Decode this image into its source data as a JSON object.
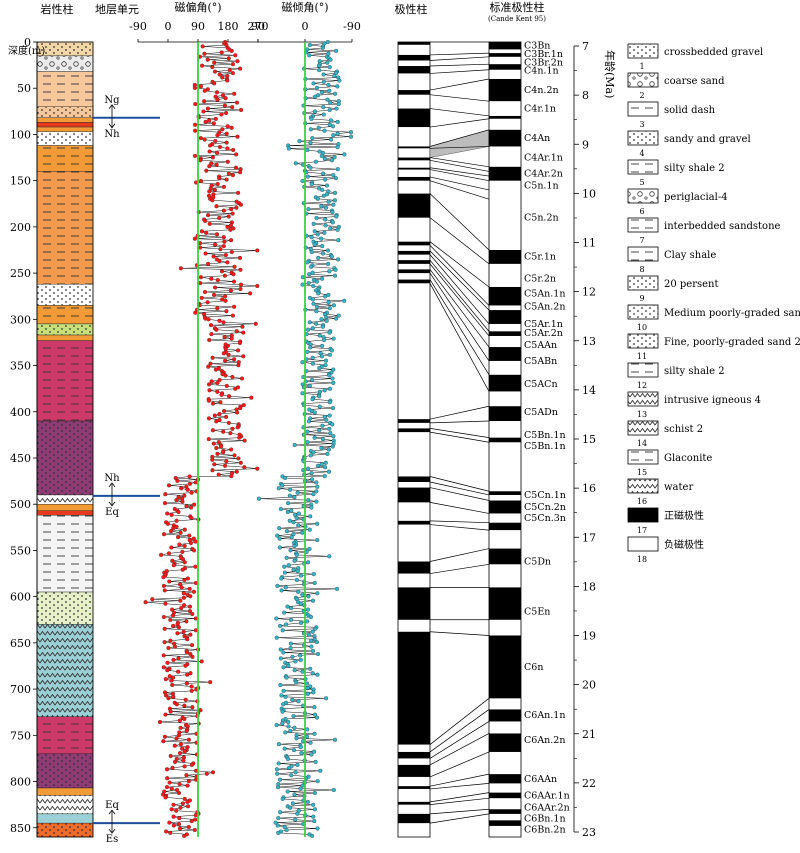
{
  "headers": {
    "lithology": "岩性柱",
    "strat_unit": "地层单元",
    "declination": "磁偏角(°)",
    "inclination": "磁倾角(°)",
    "polarity": "极性柱",
    "gpts": "标准极性柱",
    "gpts_ref": "(Cande Kent 95)",
    "depth": "深度(m)",
    "age": "年龄(Ma)"
  },
  "depth_ticks": [
    0,
    50,
    100,
    150,
    200,
    250,
    300,
    350,
    400,
    450,
    500,
    550,
    600,
    650,
    700,
    750,
    800,
    850
  ],
  "age_ticks": [
    7,
    8,
    9,
    10,
    11,
    12,
    13,
    14,
    15,
    16,
    17,
    18,
    19,
    20,
    21,
    22,
    23
  ],
  "dec_ticks": [
    "-90",
    "0",
    "90",
    "180",
    "270"
  ],
  "inc_ticks": [
    "90",
    "0",
    "-90"
  ],
  "boundaries": [
    {
      "depth": 82,
      "upper": "Ng",
      "lower": "Nh",
      "color": "#1f4e9a"
    },
    {
      "depth": 491,
      "upper": "Nh",
      "lower": "Eq",
      "color": "#1f4e9a"
    },
    {
      "depth": 845,
      "upper": "Eq",
      "lower": "Es",
      "color": "#1f4e9a"
    }
  ],
  "lithology_layers": [
    {
      "top": 0,
      "bottom": 15,
      "color": "#f3d6a6",
      "pattern": "dots"
    },
    {
      "top": 15,
      "bottom": 32,
      "color": "#ececec",
      "pattern": "circles"
    },
    {
      "top": 32,
      "bottom": 70,
      "color": "#f6c79a",
      "pattern": "dash"
    },
    {
      "top": 70,
      "bottom": 82,
      "color": "#f6c79a",
      "pattern": "dots"
    },
    {
      "top": 82,
      "bottom": 87,
      "color": "#f29a35",
      "pattern": "none"
    },
    {
      "top": 87,
      "bottom": 92,
      "color": "#e53a1f",
      "pattern": "none"
    },
    {
      "top": 92,
      "bottom": 97,
      "color": "#f29a35",
      "pattern": "none"
    },
    {
      "top": 97,
      "bottom": 112,
      "color": "#ffffff",
      "pattern": "dots"
    },
    {
      "top": 112,
      "bottom": 140,
      "color": "#f29a35",
      "pattern": "dash"
    },
    {
      "top": 140,
      "bottom": 262,
      "color": "#f39a4e",
      "pattern": "dash"
    },
    {
      "top": 262,
      "bottom": 285,
      "color": "#ffffff",
      "pattern": "dots"
    },
    {
      "top": 285,
      "bottom": 305,
      "color": "#f29a35",
      "pattern": "dash"
    },
    {
      "top": 305,
      "bottom": 317,
      "color": "#c7e07a",
      "pattern": "dots"
    },
    {
      "top": 317,
      "bottom": 323,
      "color": "#f29a35",
      "pattern": "none"
    },
    {
      "top": 323,
      "bottom": 410,
      "color": "#cd3a6a",
      "pattern": "dash"
    },
    {
      "top": 410,
      "bottom": 490,
      "color": "#8e3a74",
      "pattern": "dots"
    },
    {
      "top": 490,
      "bottom": 500,
      "color": "#ffffff",
      "pattern": "zigzag"
    },
    {
      "top": 500,
      "bottom": 507,
      "color": "#f29a35",
      "pattern": "none"
    },
    {
      "top": 507,
      "bottom": 512,
      "color": "#e53a1f",
      "pattern": "none"
    },
    {
      "top": 512,
      "bottom": 595,
      "color": "#f4f4f4",
      "pattern": "dash"
    },
    {
      "top": 595,
      "bottom": 630,
      "color": "#e6f0c9",
      "pattern": "dots"
    },
    {
      "top": 630,
      "bottom": 730,
      "color": "#9bd0d6",
      "pattern": "zigzag"
    },
    {
      "top": 730,
      "bottom": 770,
      "color": "#cd3a6a",
      "pattern": "dash"
    },
    {
      "top": 770,
      "bottom": 807,
      "color": "#8e3a74",
      "pattern": "dots"
    },
    {
      "top": 807,
      "bottom": 815,
      "color": "#f29a35",
      "pattern": "none"
    },
    {
      "top": 815,
      "bottom": 835,
      "color": "#ffffff",
      "pattern": "zigzag"
    },
    {
      "top": 835,
      "bottom": 845,
      "color": "#9bd0d6",
      "pattern": "none"
    },
    {
      "top": 845,
      "bottom": 860,
      "color": "#f06a2a",
      "pattern": "dots"
    }
  ],
  "polarity_normal": [
    [
      0,
      3
    ],
    [
      14,
      20
    ],
    [
      26,
      34
    ],
    [
      52,
      57
    ],
    [
      72,
      92
    ],
    [
      113,
      115
    ],
    [
      125,
      128
    ],
    [
      136,
      138
    ],
    [
      146,
      150
    ],
    [
      164,
      190
    ],
    [
      216,
      220
    ],
    [
      226,
      230
    ],
    [
      236,
      240
    ],
    [
      246,
      250
    ],
    [
      257,
      261
    ],
    [
      408,
      412
    ],
    [
      418,
      422
    ],
    [
      470,
      476
    ],
    [
      482,
      498
    ],
    [
      518,
      522
    ],
    [
      562,
      575
    ],
    [
      590,
      625
    ],
    [
      638,
      760
    ],
    [
      768,
      775
    ],
    [
      782,
      795
    ],
    [
      805,
      808
    ],
    [
      822,
      825
    ],
    [
      835,
      845
    ]
  ],
  "gpts_normal": [
    [
      0,
      8
    ],
    [
      12,
      16
    ],
    [
      24,
      30
    ],
    [
      40,
      64
    ],
    [
      80,
      83
    ],
    [
      95,
      113
    ],
    [
      135,
      150
    ],
    [
      225,
      240
    ],
    [
      265,
      285
    ],
    [
      290,
      305
    ],
    [
      313,
      318
    ],
    [
      330,
      345
    ],
    [
      360,
      378
    ],
    [
      394,
      410
    ],
    [
      428,
      433
    ],
    [
      486,
      490
    ],
    [
      496,
      510
    ],
    [
      520,
      528
    ],
    [
      548,
      565
    ],
    [
      590,
      625
    ],
    [
      642,
      710
    ],
    [
      722,
      735
    ],
    [
      748,
      768
    ],
    [
      792,
      802
    ],
    [
      812,
      818
    ],
    [
      830,
      835
    ],
    [
      842,
      848
    ]
  ],
  "gpts_labels": [
    {
      "label": "C3Bn",
      "depth": 4
    },
    {
      "label": "C3Br.1n",
      "depth": 13
    },
    {
      "label": "C3Br.2n",
      "depth": 22
    },
    {
      "label": "C4n.1n",
      "depth": 31
    },
    {
      "label": "C4n.2n",
      "depth": 52
    },
    {
      "label": "C4r.1n",
      "depth": 72
    },
    {
      "label": "C4An",
      "depth": 104
    },
    {
      "label": "C4Ar.1n",
      "depth": 125
    },
    {
      "label": "C4Ar.2n",
      "depth": 142
    },
    {
      "label": "C5n.1n",
      "depth": 155
    },
    {
      "label": "C5n.2n",
      "depth": 190
    },
    {
      "label": "C5r.1n",
      "depth": 232
    },
    {
      "label": "C5r.2n",
      "depth": 256
    },
    {
      "label": "C5An.1n",
      "depth": 272
    },
    {
      "label": "C5An.2n",
      "depth": 286
    },
    {
      "label": "C5Ar.1n",
      "depth": 305
    },
    {
      "label": "C5Ar.2n",
      "depth": 315
    },
    {
      "label": "C5AAn",
      "depth": 328
    },
    {
      "label": "C5ABn",
      "depth": 345
    },
    {
      "label": "C5ACn",
      "depth": 370
    },
    {
      "label": "C5ADn",
      "depth": 400
    },
    {
      "label": "C5Bn.1n",
      "depth": 425
    },
    {
      "label": "C5Bn.1n",
      "depth": 437
    },
    {
      "label": "C5Cn.1n",
      "depth": 490
    },
    {
      "label": "C5Cn.2n",
      "depth": 503
    },
    {
      "label": "C5Cn.3n",
      "depth": 515
    },
    {
      "label": "C5Dn",
      "depth": 562
    },
    {
      "label": "C5En",
      "depth": 616
    },
    {
      "label": "C6n",
      "depth": 676
    },
    {
      "label": "C6An.1n",
      "depth": 728
    },
    {
      "label": "C6An.2n",
      "depth": 755
    },
    {
      "label": "C6AAn",
      "depth": 797
    },
    {
      "label": "C6AAr.1n",
      "depth": 815
    },
    {
      "label": "C6AAr.2n",
      "depth": 828
    },
    {
      "label": "C6Bn.1n",
      "depth": 840
    },
    {
      "label": "C6Bn.2n",
      "depth": 852
    }
  ],
  "correlations": [
    [
      0,
      0
    ],
    [
      14,
      12
    ],
    [
      20,
      16
    ],
    [
      26,
      24
    ],
    [
      34,
      30
    ],
    [
      52,
      40
    ],
    [
      57,
      64
    ],
    [
      72,
      80
    ],
    [
      92,
      83
    ],
    [
      113,
      95
    ],
    [
      115,
      113
    ],
    [
      125,
      135
    ],
    [
      128,
      140
    ],
    [
      136,
      145
    ],
    [
      138,
      150
    ],
    [
      146,
      160
    ],
    [
      150,
      170
    ],
    [
      164,
      225
    ],
    [
      190,
      240
    ],
    [
      216,
      265
    ],
    [
      220,
      285
    ],
    [
      226,
      290
    ],
    [
      230,
      305
    ],
    [
      236,
      313
    ],
    [
      240,
      318
    ],
    [
      246,
      330
    ],
    [
      250,
      345
    ],
    [
      257,
      360
    ],
    [
      261,
      378
    ],
    [
      408,
      394
    ],
    [
      412,
      410
    ],
    [
      418,
      428
    ],
    [
      422,
      433
    ],
    [
      470,
      486
    ],
    [
      476,
      490
    ],
    [
      482,
      496
    ],
    [
      498,
      510
    ],
    [
      518,
      520
    ],
    [
      522,
      528
    ],
    [
      562,
      548
    ],
    [
      575,
      565
    ],
    [
      590,
      590
    ],
    [
      625,
      625
    ],
    [
      638,
      642
    ],
    [
      760,
      710
    ],
    [
      768,
      722
    ],
    [
      775,
      735
    ],
    [
      782,
      748
    ],
    [
      795,
      768
    ],
    [
      805,
      792
    ],
    [
      808,
      802
    ],
    [
      822,
      812
    ],
    [
      825,
      818
    ],
    [
      835,
      830
    ],
    [
      845,
      835
    ]
  ],
  "grey_correlation": [
    [
      113,
      95
    ],
    [
      125,
      105
    ],
    [
      128,
      113
    ],
    [
      115,
      100
    ]
  ],
  "legend": [
    {
      "num": "1",
      "label": "crossbedded gravel",
      "pattern": "dots",
      "color": "#ffffff"
    },
    {
      "num": "2",
      "label": "coarse sand",
      "pattern": "circles",
      "color": "#ffffff"
    },
    {
      "num": "3",
      "label": "solid dash",
      "pattern": "dash",
      "color": "#ffffff"
    },
    {
      "num": "4",
      "label": "sandy and gravel",
      "pattern": "dots",
      "color": "#ffffff"
    },
    {
      "num": "5",
      "label": "silty shale 2",
      "pattern": "dash",
      "color": "#ffffff"
    },
    {
      "num": "6",
      "label": "periglacial-4",
      "pattern": "circles",
      "color": "#ffffff"
    },
    {
      "num": "7",
      "label": "interbedded sandstone",
      "pattern": "dash",
      "color": "#ffffff"
    },
    {
      "num": "8",
      "label": "Clay shale",
      "pattern": "dash",
      "color": "#ffffff"
    },
    {
      "num": "9",
      "label": "20 persent",
      "pattern": "dots",
      "color": "#ffffff"
    },
    {
      "num": "10",
      "label": "Medium poorly-graded sand",
      "pattern": "dots",
      "color": "#ffffff"
    },
    {
      "num": "11",
      "label": "Fine, poorly-graded sand 2",
      "pattern": "dots",
      "color": "#ffffff"
    },
    {
      "num": "12",
      "label": "silty shale 2",
      "pattern": "dash",
      "color": "#ffffff"
    },
    {
      "num": "13",
      "label": "intrusive igneous 4",
      "pattern": "zigzag",
      "color": "#ffffff"
    },
    {
      "num": "14",
      "label": "schist 2",
      "pattern": "zigzag",
      "color": "#ffffff"
    },
    {
      "num": "15",
      "label": "Glaconite",
      "pattern": "dash",
      "color": "#ffffff"
    },
    {
      "num": "16",
      "label": "water",
      "pattern": "zigzag",
      "color": "#ffffff"
    },
    {
      "num": "17",
      "label": "正磁极性",
      "pattern": "black",
      "color": "#000000"
    },
    {
      "num": "18",
      "label": "负磁极性",
      "pattern": "white",
      "color": "#ffffff"
    }
  ],
  "chart_data": {
    "type": "scatter",
    "ylabel": "深度(m)",
    "ylim": [
      0,
      860
    ],
    "series": [
      {
        "name": "磁偏角(°)",
        "xlim": [
          -90,
          270
        ],
        "ref_line": 90,
        "color": "#ff1a1a",
        "segments": [
          {
            "from": 0,
            "to": 300,
            "center": 150,
            "spread": 70
          },
          {
            "from": 300,
            "to": 470,
            "center": 175,
            "spread": 55
          },
          {
            "from": 470,
            "to": 860,
            "center": 40,
            "spread": 55
          }
        ]
      },
      {
        "name": "磁倾角(°)",
        "xlim": [
          90,
          -90
        ],
        "ref_line": 0,
        "color": "#34b5c8",
        "segments": [
          {
            "from": 0,
            "to": 300,
            "center": -30,
            "spread": 35
          },
          {
            "from": 300,
            "to": 470,
            "center": -25,
            "spread": 30
          },
          {
            "from": 470,
            "to": 860,
            "center": 15,
            "spread": 40
          }
        ]
      }
    ]
  }
}
